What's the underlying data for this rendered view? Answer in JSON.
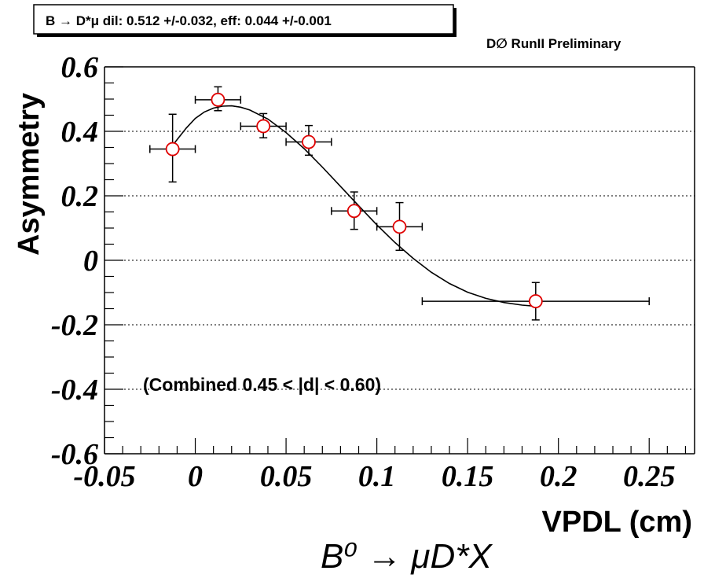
{
  "chart_data": {
    "type": "scatter",
    "fit_curve": true,
    "info_box": "B → D*μ dil: 0.512 +/-0.032, eff: 0.044 +/-0.001",
    "experiment": "D∅ RunII Preliminary",
    "ylabel": "Asymmetry",
    "xlabel": "VPDL (cm)",
    "annotation": "(Combined 0.45 < |d| < 0.60)",
    "process": "B⁰ → μD*X",
    "xlim": [
      -0.05,
      0.275
    ],
    "ylim": [
      -0.6,
      0.6
    ],
    "x_ticks": [
      {
        "value": -0.05,
        "label": "-0.05"
      },
      {
        "value": 0,
        "label": "0"
      },
      {
        "value": 0.05,
        "label": "0.05"
      },
      {
        "value": 0.1,
        "label": "0.1"
      },
      {
        "value": 0.15,
        "label": "0.15"
      },
      {
        "value": 0.2,
        "label": "0.2"
      },
      {
        "value": 0.25,
        "label": "0.25"
      }
    ],
    "y_ticks": [
      {
        "value": 0.6,
        "label": "0.6"
      },
      {
        "value": 0.4,
        "label": "0.4"
      },
      {
        "value": 0.2,
        "label": "0.2"
      },
      {
        "value": 0,
        "label": "0"
      },
      {
        "value": -0.2,
        "label": "-0.2"
      },
      {
        "value": -0.4,
        "label": "-0.4"
      },
      {
        "value": -0.6,
        "label": "-0.6"
      }
    ],
    "grid_y": [
      0.4,
      0.2,
      0,
      -0.2,
      -0.4
    ],
    "points": [
      {
        "x": -0.0125,
        "y": 0.345,
        "x_lo": -0.025,
        "x_hi": 0.0,
        "y_lo": 0.243,
        "y_hi": 0.453
      },
      {
        "x": 0.0125,
        "y": 0.498,
        "x_lo": 0.0,
        "x_hi": 0.025,
        "y_lo": 0.464,
        "y_hi": 0.538
      },
      {
        "x": 0.0375,
        "y": 0.416,
        "x_lo": 0.025,
        "x_hi": 0.05,
        "y_lo": 0.38,
        "y_hi": 0.455
      },
      {
        "x": 0.0625,
        "y": 0.367,
        "x_lo": 0.05,
        "x_hi": 0.075,
        "y_lo": 0.326,
        "y_hi": 0.418
      },
      {
        "x": 0.0875,
        "y": 0.153,
        "x_lo": 0.075,
        "x_hi": 0.1,
        "y_lo": 0.096,
        "y_hi": 0.212
      },
      {
        "x": 0.1125,
        "y": 0.104,
        "x_lo": 0.1,
        "x_hi": 0.125,
        "y_lo": 0.031,
        "y_hi": 0.179
      },
      {
        "x": 0.1875,
        "y": -0.127,
        "x_lo": 0.125,
        "x_hi": 0.25,
        "y_lo": -0.185,
        "y_hi": -0.069
      }
    ],
    "fit": {
      "x": [
        -0.012,
        -0.005,
        0.0,
        0.005,
        0.01,
        0.015,
        0.02,
        0.025,
        0.03,
        0.04,
        0.05,
        0.06,
        0.07,
        0.08,
        0.09,
        0.1,
        0.11,
        0.12,
        0.13,
        0.14,
        0.15,
        0.16,
        0.17,
        0.18,
        0.188
      ],
      "y": [
        0.36,
        0.41,
        0.44,
        0.46,
        0.472,
        0.478,
        0.479,
        0.475,
        0.466,
        0.438,
        0.396,
        0.346,
        0.289,
        0.229,
        0.169,
        0.11,
        0.055,
        0.006,
        -0.037,
        -0.072,
        -0.099,
        -0.118,
        -0.131,
        -0.139,
        -0.143
      ]
    },
    "colors": {
      "marker_stroke": "#e00000",
      "axis": "#000000",
      "grid": "#000000"
    }
  }
}
